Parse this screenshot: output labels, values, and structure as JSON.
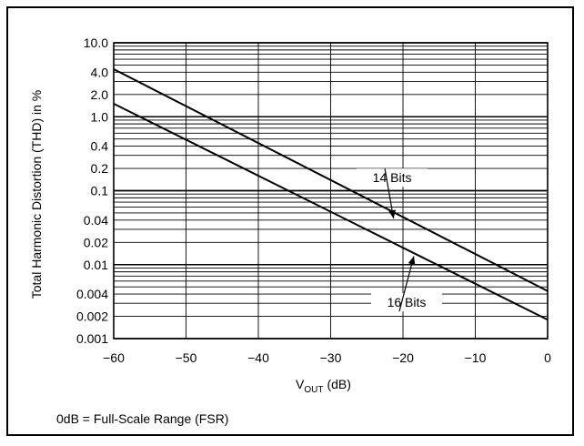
{
  "chart_data": {
    "type": "line",
    "title": "",
    "xlabel": "V",
    "xlabel_sub": "OUT",
    "xlabel_unit": "(dB)",
    "ylabel": "Total Harmonic Distortion (THD) in %",
    "xlim": [
      -60,
      0
    ],
    "ylim": [
      0.001,
      10.0
    ],
    "y_scale": "log",
    "grid": true,
    "x_ticks": [
      -60,
      -50,
      -40,
      -30,
      -20,
      -10,
      0
    ],
    "x_tick_labels": [
      "−60",
      "−50",
      "−40",
      "−30",
      "−20",
      "−10",
      "0"
    ],
    "y_ticks": [
      0.001,
      0.002,
      0.004,
      0.01,
      0.02,
      0.04,
      0.1,
      0.2,
      0.4,
      1.0,
      2.0,
      4.0,
      10.0
    ],
    "y_tick_labels": [
      "0.001",
      "0.002",
      "0.004",
      "0.01",
      "0.02",
      "0.04",
      "0.1",
      "0.2",
      "0.4",
      "1.0",
      "2.0",
      "4.0",
      "10.0"
    ],
    "series": [
      {
        "name": "14 Bits",
        "x": [
          -60,
          0
        ],
        "y": [
          4.4,
          0.0044
        ]
      },
      {
        "name": "16 Bits",
        "x": [
          -60,
          0
        ],
        "y": [
          1.5,
          0.0018
        ]
      }
    ],
    "annotations": [
      {
        "text": "14 Bits",
        "series": "14 Bits",
        "label_at": [
          -21.5,
          0.15
        ],
        "arrow_to": [
          -21.3,
          0.042
        ]
      },
      {
        "text": "16 Bits",
        "series": "16 Bits",
        "label_at": [
          -19.5,
          0.0031
        ],
        "arrow_to": [
          -18.5,
          0.013
        ]
      }
    ]
  },
  "footnote": "0dB = Full-Scale Range (FSR)"
}
